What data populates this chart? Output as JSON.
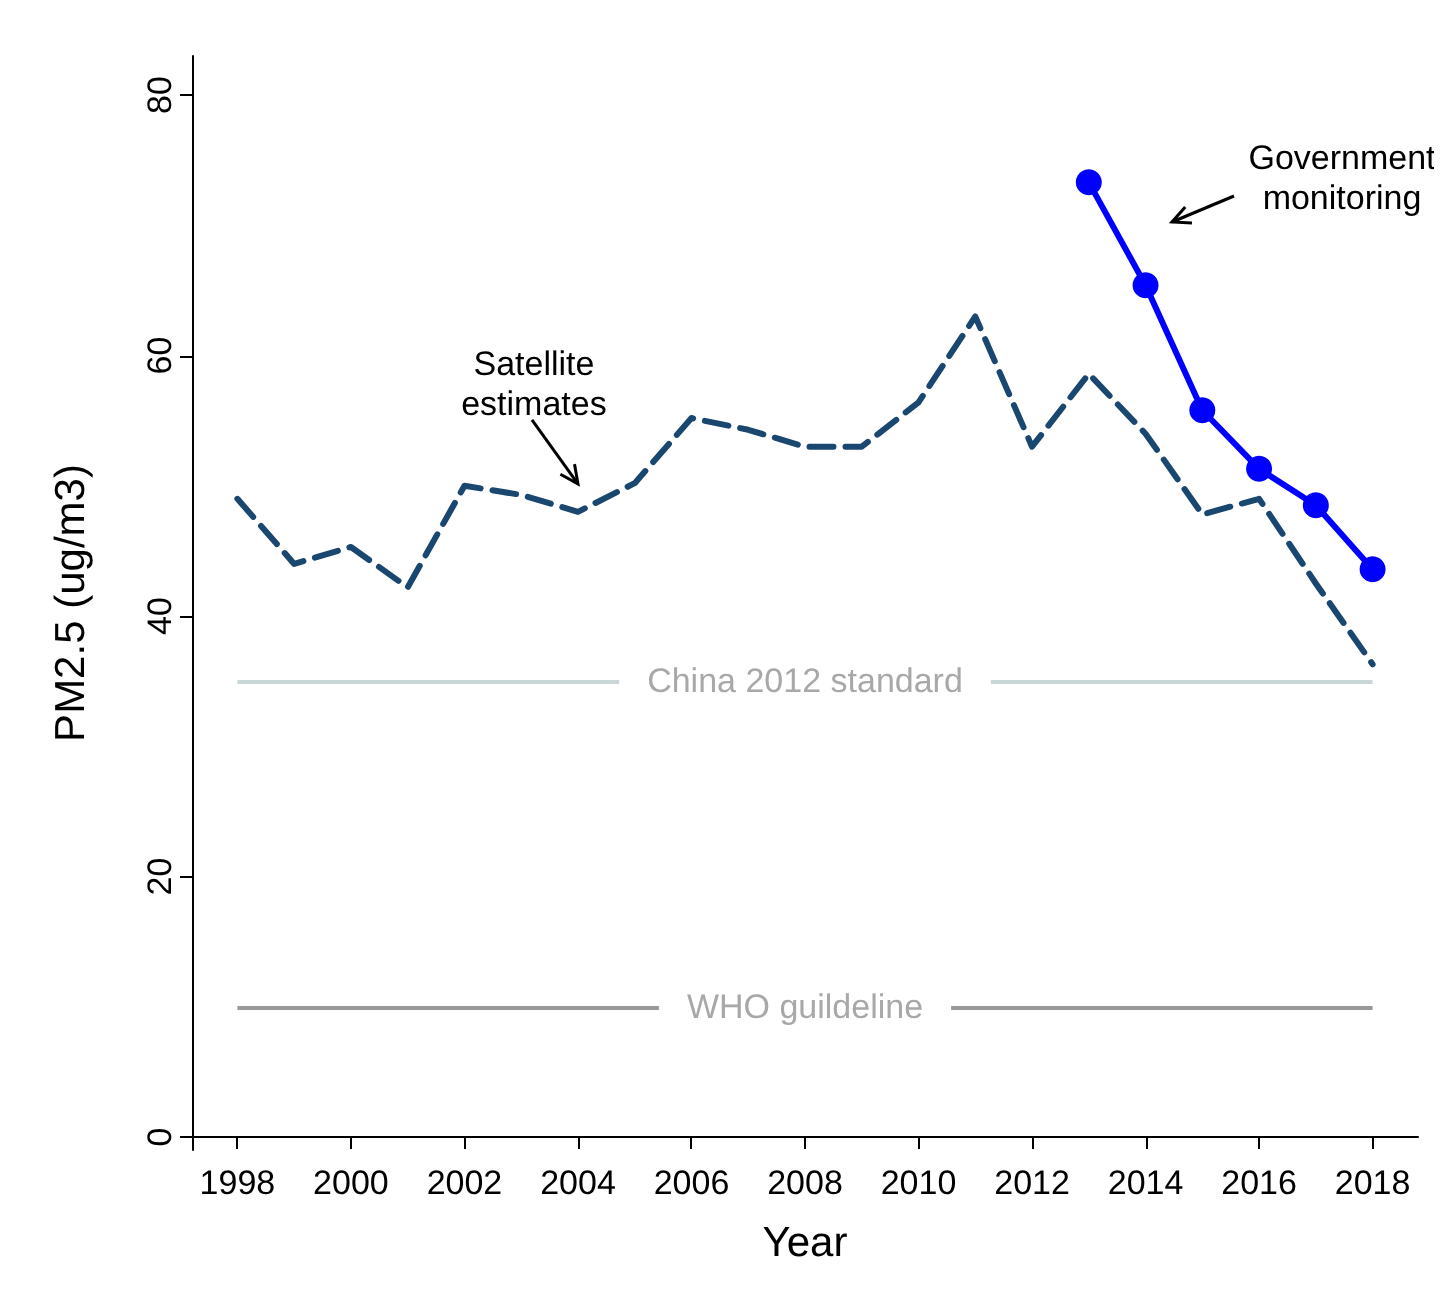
{
  "chart_data": {
    "type": "line",
    "xlabel": "Year",
    "ylabel": "PM2.5 (ug/m3)",
    "xlim": [
      1997.2,
      2018.8
    ],
    "ylim": [
      -1,
      83
    ],
    "xticks": [
      1998,
      2000,
      2002,
      2004,
      2006,
      2008,
      2010,
      2012,
      2014,
      2016,
      2018
    ],
    "yticks": [
      0,
      20,
      40,
      60,
      80
    ],
    "series": [
      {
        "color": "#1a476f",
        "line_style": "dashed",
        "marker": "none",
        "x": [
          1998,
          1999,
          2000,
          2001,
          2002,
          2003,
          2004,
          2005,
          2006,
          2007,
          2008,
          2009,
          2010,
          2011,
          2012,
          2013,
          2014,
          2015,
          2016,
          2017,
          2018
        ],
        "values": [
          49,
          44,
          45.3,
          42.2,
          50,
          49.3,
          48,
          50.2,
          55.2,
          54.3,
          53,
          53,
          56.4,
          63,
          53,
          58.6,
          54,
          47.8,
          49,
          42.5,
          36.3
        ]
      },
      {
        "color": "#0000ff",
        "line_style": "solid",
        "marker": "circle",
        "x": [
          2013,
          2014,
          2015,
          2016,
          2017,
          2018
        ],
        "values": [
          73.3,
          65.4,
          55.8,
          51.3,
          48.5,
          43.6
        ]
      }
    ],
    "ref_lines": [
      {
        "axis": "y",
        "value": 35,
        "label": "China 2012 standard",
        "color": "#c9d7d7"
      },
      {
        "axis": "y",
        "value": 10,
        "label": "WHO guildeline",
        "color": "#999999"
      }
    ],
    "annotations": [
      {
        "text": "Satellite\nestimates",
        "x": 2004,
        "y": 48
      },
      "Government\nmonitoring"
    ]
  }
}
